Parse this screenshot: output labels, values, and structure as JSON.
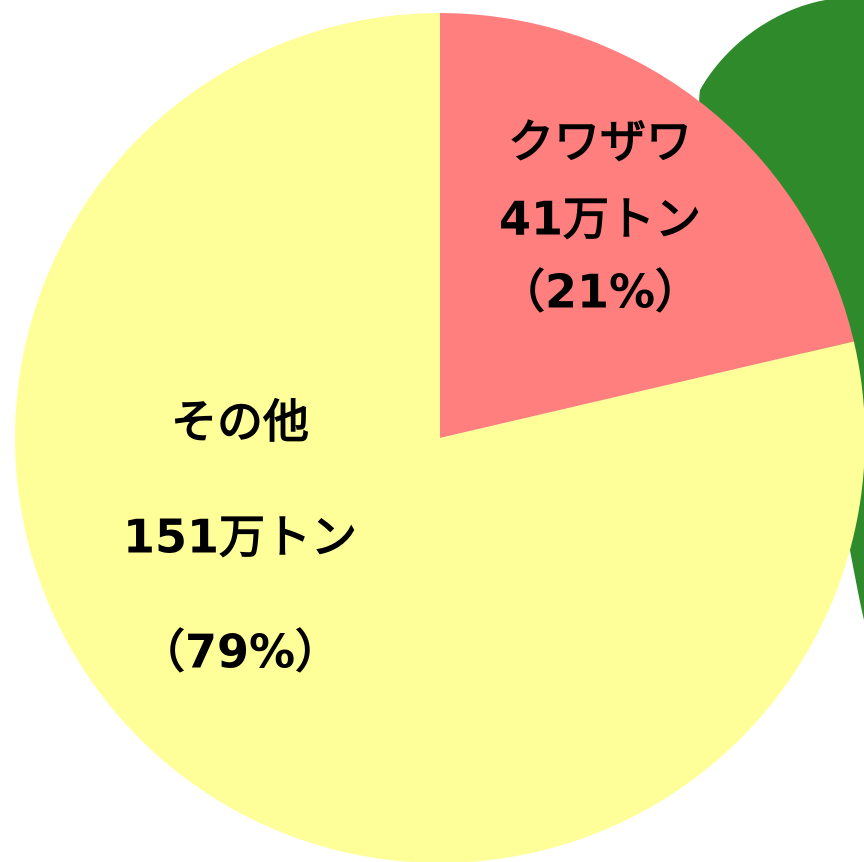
{
  "chart_data": {
    "type": "pie",
    "categories": [
      "クワザワ",
      "その他"
    ],
    "values": [
      41,
      151
    ],
    "value_labels": [
      "41万トン",
      "151万トン"
    ],
    "percent_labels": [
      "（21%）",
      "（79%）"
    ],
    "colors": [
      "#ff7f7f",
      "#ffff99"
    ]
  }
}
